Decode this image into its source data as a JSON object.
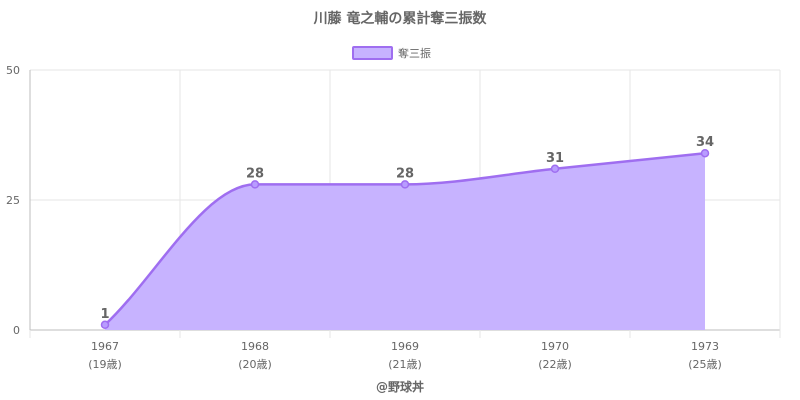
{
  "chart_data": {
    "type": "area",
    "title": "川藤 竜之輔の累計奪三振数",
    "legend": {
      "position": "top",
      "label": "奪三振"
    },
    "categories": [
      "1967",
      "1968",
      "1969",
      "1970",
      "1973"
    ],
    "category_sublabels": [
      "(19歳)",
      "(20歳)",
      "(21歳)",
      "(22歳)",
      "(25歳)"
    ],
    "series": [
      {
        "name": "奪三振",
        "values": [
          1,
          28,
          28,
          31,
          34
        ],
        "fill_color": "#c7b3ff",
        "line_color": "#9f6ef0"
      }
    ],
    "yticks": [
      0,
      25,
      50
    ],
    "ylim": [
      0,
      50
    ],
    "grid": true,
    "data_labels": [
      "1",
      "28",
      "28",
      "31",
      "34"
    ],
    "footer": "@野球丼"
  }
}
